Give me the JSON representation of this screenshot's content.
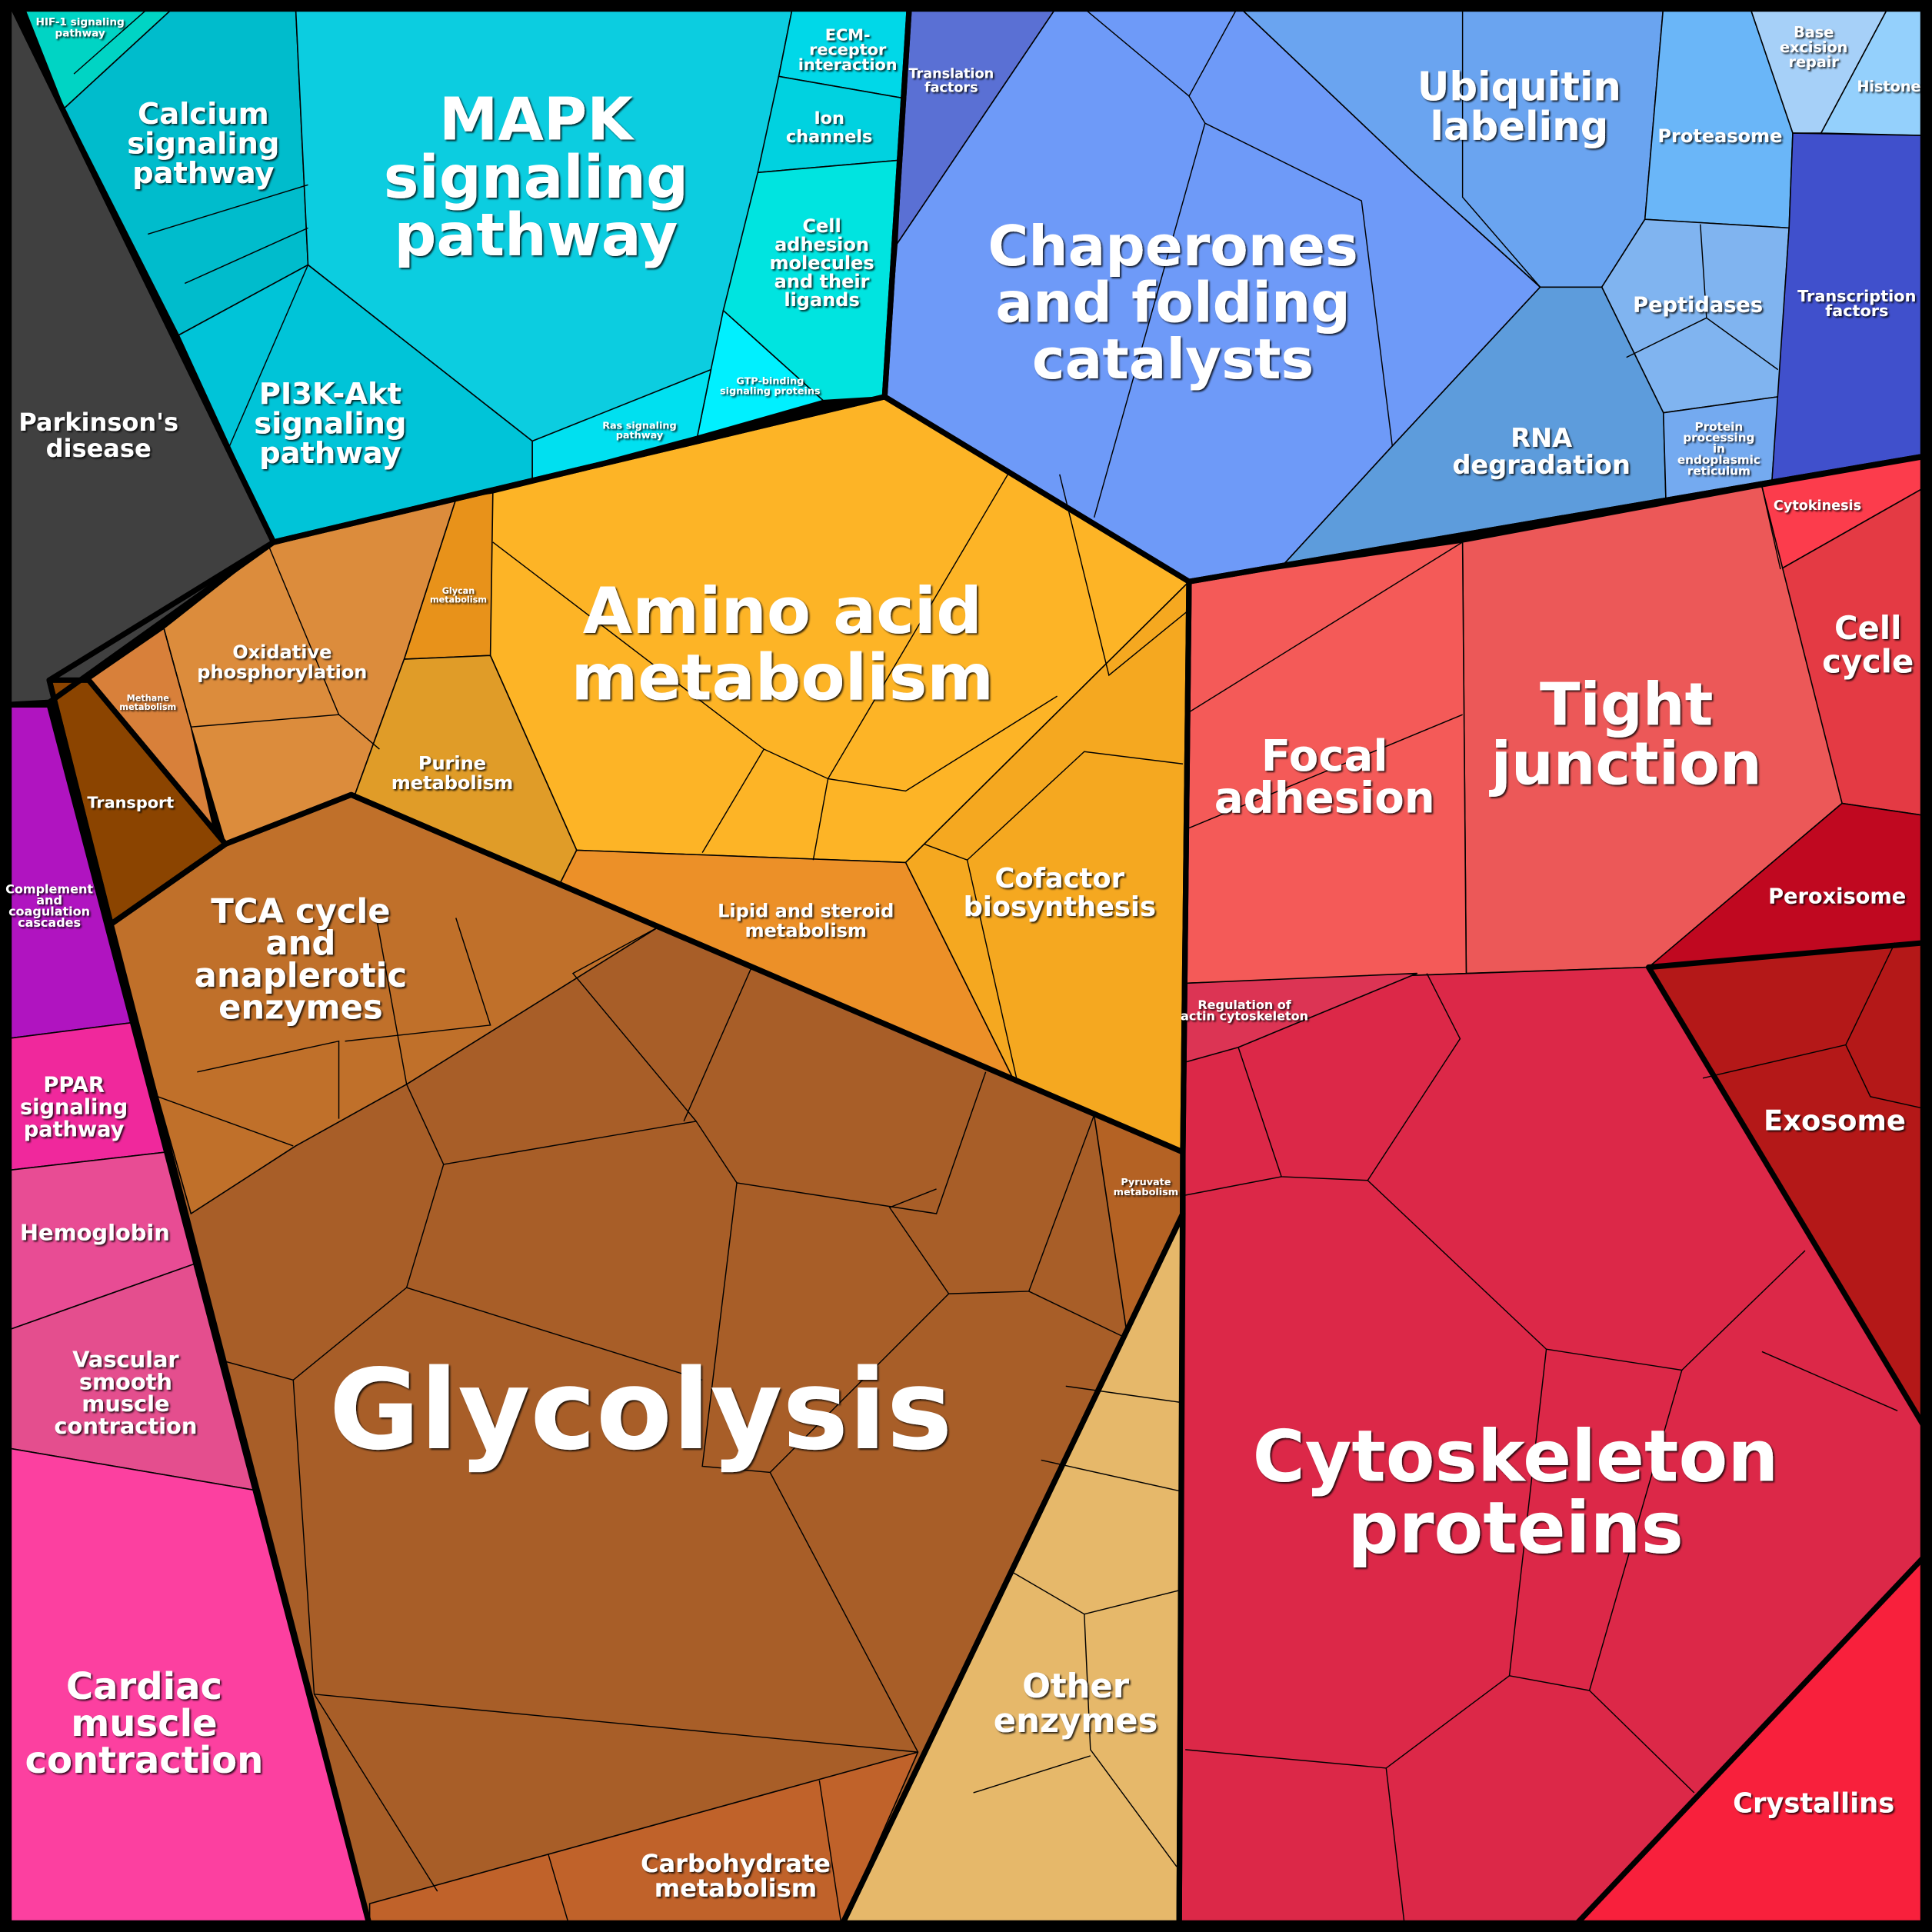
{
  "cells": [
    {
      "id": "parkinsons",
      "label_lines": [
        "Parkinson's",
        "disease"
      ],
      "color": "#404040"
    },
    {
      "id": "hif1",
      "label_lines": [
        "HIF-1 signaling",
        "pathway"
      ],
      "color": "#00d4c4"
    },
    {
      "id": "calcium",
      "label_lines": [
        "Calcium",
        "signaling",
        "pathway"
      ],
      "color": "#00bccc"
    },
    {
      "id": "mapk",
      "label_lines": [
        "MAPK",
        "signaling",
        "pathway"
      ],
      "color": "#0ccde0"
    },
    {
      "id": "ecm",
      "label_lines": [
        "ECM-",
        "receptor",
        "interaction"
      ],
      "color": "#00d8e8"
    },
    {
      "id": "ion",
      "label_lines": [
        "Ion",
        "channels"
      ],
      "color": "#00d2e0"
    },
    {
      "id": "celladh",
      "label_lines": [
        "Cell",
        "adhesion",
        "molecules",
        "and their",
        "ligands"
      ],
      "color": "#00e4e0"
    },
    {
      "id": "gtp",
      "label_lines": [
        "GTP-binding",
        "signaling proteins"
      ],
      "color": "#00f0ff"
    },
    {
      "id": "ras",
      "label_lines": [
        "Ras signaling",
        "pathway"
      ],
      "color": "#00e0f0"
    },
    {
      "id": "pi3k",
      "label_lines": [
        "PI3K-Akt",
        "signaling",
        "pathway"
      ],
      "color": "#00c4d8"
    },
    {
      "id": "translation",
      "label_lines": [
        "Translation",
        "factors"
      ],
      "color": "#5a70d4"
    },
    {
      "id": "chaperones",
      "label_lines": [
        "Chaperones",
        "and folding",
        "catalysts"
      ],
      "color": "#6e9af8"
    },
    {
      "id": "ubiquitin",
      "label_lines": [
        "Ubiquitin",
        "labeling"
      ],
      "color": "#6aa4f0"
    },
    {
      "id": "proteasome",
      "label_lines": [
        "Proteasome"
      ],
      "color": "#6ab6f8"
    },
    {
      "id": "peptidases",
      "label_lines": [
        "Peptidases"
      ],
      "color": "#80b4f0"
    },
    {
      "id": "rna",
      "label_lines": [
        "RNA",
        "degradation"
      ],
      "color": "#5d9cdc"
    },
    {
      "id": "er",
      "label_lines": [
        "Protein",
        "processing",
        "in",
        "endoplasmic",
        "reticulum"
      ],
      "color": "#74aaf0"
    },
    {
      "id": "ber",
      "label_lines": [
        "Base",
        "excision",
        "repair"
      ],
      "color": "#a6d0f8"
    },
    {
      "id": "histone",
      "label_lines": [
        "Histone"
      ],
      "color": "#94d0fc"
    },
    {
      "id": "tf",
      "label_lines": [
        "Transcription",
        "factors"
      ],
      "color": "#4050cc"
    },
    {
      "id": "amino",
      "label_lines": [
        "Amino acid",
        "metabolism"
      ],
      "color": "#fdb426"
    },
    {
      "id": "glycan",
      "label_lines": [
        "Glycan",
        "metabolism"
      ],
      "color": "#e8921a"
    },
    {
      "id": "oxphos",
      "label_lines": [
        "Oxidative",
        "phosphorylation"
      ],
      "color": "#dc8c3c"
    },
    {
      "id": "methane",
      "label_lines": [
        "Methane",
        "metabolism"
      ],
      "color": "#d8803a"
    },
    {
      "id": "purine",
      "label_lines": [
        "Purine",
        "metabolism"
      ],
      "color": "#e09c28"
    },
    {
      "id": "transport",
      "label_lines": [
        "Transport"
      ],
      "color": "#8b4400"
    },
    {
      "id": "cofactor",
      "label_lines": [
        "Cofactor",
        "biosynthesis"
      ],
      "color": "#f5a820"
    },
    {
      "id": "lipid",
      "label_lines": [
        "Lipid and steroid",
        "metabolism"
      ],
      "color": "#ec9028"
    },
    {
      "id": "glycolysis",
      "label_lines": [
        "Glycolysis"
      ],
      "color": "#a85e28"
    },
    {
      "id": "tca",
      "label_lines": [
        "TCA cycle",
        "and",
        "anaplerotic",
        "enzymes"
      ],
      "color": "#c0702a"
    },
    {
      "id": "pyruvate",
      "label_lines": [
        "Pyruvate",
        "metabolism"
      ],
      "color": "#b46224"
    },
    {
      "id": "carbohydrate",
      "label_lines": [
        "Carbohydrate",
        "metabolism"
      ],
      "color": "#c0622a"
    },
    {
      "id": "other",
      "label_lines": [
        "Other",
        "enzymes"
      ],
      "color": "#e6b86a"
    },
    {
      "id": "complement",
      "label_lines": [
        "Complement",
        "and",
        "coagulation",
        "cascades"
      ],
      "color": "#b014c0"
    },
    {
      "id": "ppar",
      "label_lines": [
        "PPAR",
        "signaling",
        "pathway"
      ],
      "color": "#f0289c"
    },
    {
      "id": "hemoglobin",
      "label_lines": [
        "Hemoglobin"
      ],
      "color": "#e84c94"
    },
    {
      "id": "vascular",
      "label_lines": [
        "Vascular",
        "smooth",
        "muscle",
        "contraction"
      ],
      "color": "#e44e8e"
    },
    {
      "id": "cardiac",
      "label_lines": [
        "Cardiac",
        "muscle",
        "contraction"
      ],
      "color": "#fc40a0"
    },
    {
      "id": "cytokinesis",
      "label_lines": [
        "Cytokinesis"
      ],
      "color": "#fc3c4c"
    },
    {
      "id": "cellcycle",
      "label_lines": [
        "Cell",
        "cycle"
      ],
      "color": "#e43a44"
    },
    {
      "id": "tight",
      "label_lines": [
        "Tight",
        "junction"
      ],
      "color": "#ec5858"
    },
    {
      "id": "focal",
      "label_lines": [
        "Focal",
        "adhesion"
      ],
      "color": "#f45a58"
    },
    {
      "id": "peroxisome",
      "label_lines": [
        "Peroxisome"
      ],
      "color": "#c00820"
    },
    {
      "id": "exosome",
      "label_lines": [
        "Exosome"
      ],
      "color": "#b41818"
    },
    {
      "id": "cytoskeleton",
      "label_lines": [
        "Cytoskeleton",
        "proteins"
      ],
      "color": "#dc2848"
    },
    {
      "id": "actin",
      "label_lines": [
        "Regulation of",
        "actin cytoskeleton"
      ],
      "color": "#dc3454"
    },
    {
      "id": "crystallins",
      "label_lines": [
        "Crystallins"
      ],
      "color": "#f8203c"
    }
  ]
}
